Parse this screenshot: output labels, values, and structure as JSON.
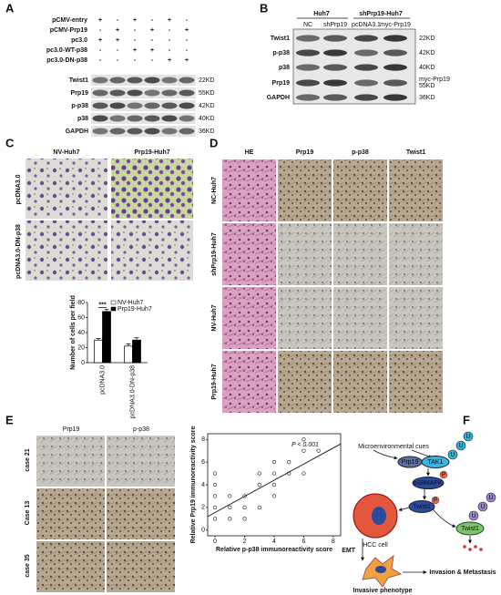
{
  "panel_a": {
    "label": "A",
    "treatments": [
      {
        "name": "pCMV-entry",
        "signs": [
          "+",
          "-",
          "+",
          "-",
          "+",
          "-"
        ]
      },
      {
        "name": "pCMV-Prp19",
        "signs": [
          "-",
          "+",
          "-",
          "+",
          "-",
          "+"
        ]
      },
      {
        "name": "pc3.0",
        "signs": [
          "+",
          "+",
          "-",
          "-",
          "-",
          "-"
        ]
      },
      {
        "name": "pc3.0-WT-p38",
        "signs": [
          "-",
          "-",
          "+",
          "+",
          "-",
          "-"
        ]
      },
      {
        "name": "pc3.0-DN-p38",
        "signs": [
          "-",
          "-",
          "-",
          "-",
          "+",
          "+"
        ]
      }
    ],
    "blots": [
      {
        "name": "Twist1",
        "size": "22KD"
      },
      {
        "name": "Prp19",
        "size": "55KD"
      },
      {
        "name": "p-p38",
        "size": "42KD"
      },
      {
        "name": "p38",
        "size": "40KD"
      },
      {
        "name": "GAPDH",
        "size": "36KD"
      }
    ]
  },
  "panel_b": {
    "label": "B",
    "groups": [
      "Huh7",
      "shPrp19-Huh7"
    ],
    "lanes": [
      "NC",
      "shPrp19",
      "pcDNA3.1",
      "myc-Prp19"
    ],
    "blots": [
      {
        "name": "Twist1",
        "size": "22KD"
      },
      {
        "name": "p-p38",
        "size": "42KD"
      },
      {
        "name": "p38",
        "size": "40KD"
      },
      {
        "name": "Prp19",
        "note": "myc-Prp19",
        "size": "55KD"
      },
      {
        "name": "GAPDH",
        "size": "36KD"
      }
    ]
  },
  "panel_c": {
    "label": "C",
    "columns": [
      "NV-Huh7",
      "Prp19-Huh7"
    ],
    "rows": [
      "pcDNA3.0",
      "pcDNA3.0-DN-p38"
    ]
  },
  "panel_d": {
    "label": "D",
    "columns": [
      "HE",
      "Prp19",
      "p-p38",
      "Twist1"
    ],
    "rows": [
      "NC-Huh7",
      "shPrp19-Huh7",
      "NV-Huh7",
      "Prp19-Huh7"
    ]
  },
  "panel_e": {
    "label": "E",
    "columns": [
      "Prp19",
      "p-p38"
    ],
    "rows": [
      "case 21",
      "Case 13",
      "case 35"
    ]
  },
  "panel_f": {
    "label": "F",
    "cues": "Microenvironmental cues",
    "prp19": "Prp19",
    "tak1": "TAK1",
    "ubiquitin": [
      "U",
      "U",
      "U",
      "U",
      "U",
      "U"
    ],
    "p38mapk": "p38MAPK",
    "phospho": [
      "P",
      "P"
    ],
    "twist1_a": "Twist1",
    "hcc": "HCC cell",
    "twist1_b": "Twist1",
    "emt": "EMT",
    "invasive": "Invasive phenotype",
    "invasion": "Invasion & Metastasis"
  },
  "chart_data": [
    {
      "type": "bar",
      "categories": [
        "pcDNA3.0",
        "pcDNA3.0-DN-p38"
      ],
      "series": [
        {
          "name": "NV-Huh7",
          "color": "#ffffff",
          "values": [
            30,
            22
          ],
          "errors": [
            2,
            3
          ]
        },
        {
          "name": "Prp19-Huh7",
          "color": "#000000",
          "values": [
            68,
            30
          ],
          "errors": [
            3,
            3
          ]
        }
      ],
      "ylim": [
        0,
        80
      ],
      "yticks": [
        0,
        20,
        40,
        60,
        80
      ],
      "y_label": "Number of cells per field",
      "annotation": "***"
    },
    {
      "type": "scatter",
      "x": [
        0,
        0,
        0,
        0,
        0,
        1,
        1,
        1,
        2,
        2,
        2,
        3,
        3,
        3,
        4,
        4,
        4,
        4,
        5,
        5,
        6,
        6,
        6,
        7
      ],
      "y": [
        1,
        2,
        3,
        4,
        5,
        1,
        2,
        3,
        1,
        2,
        3,
        2,
        4,
        5,
        3,
        4,
        5,
        6,
        5,
        6,
        5,
        7,
        8,
        7
      ],
      "xlim": [
        -0.5,
        8.5
      ],
      "ylim": [
        -0.5,
        8.5
      ],
      "xticks": [
        0,
        2,
        4,
        6,
        8
      ],
      "yticks": [
        0,
        2,
        4,
        6,
        8
      ],
      "trend_line": {
        "x": [
          -0.5,
          8.5
        ],
        "y": [
          1.2,
          7.6
        ]
      },
      "x_label": "Relative p-p38 immunoreactivity score",
      "y_label": "Relative Prp19 immunoreactivity score",
      "annotation": "P < 0.001"
    }
  ]
}
